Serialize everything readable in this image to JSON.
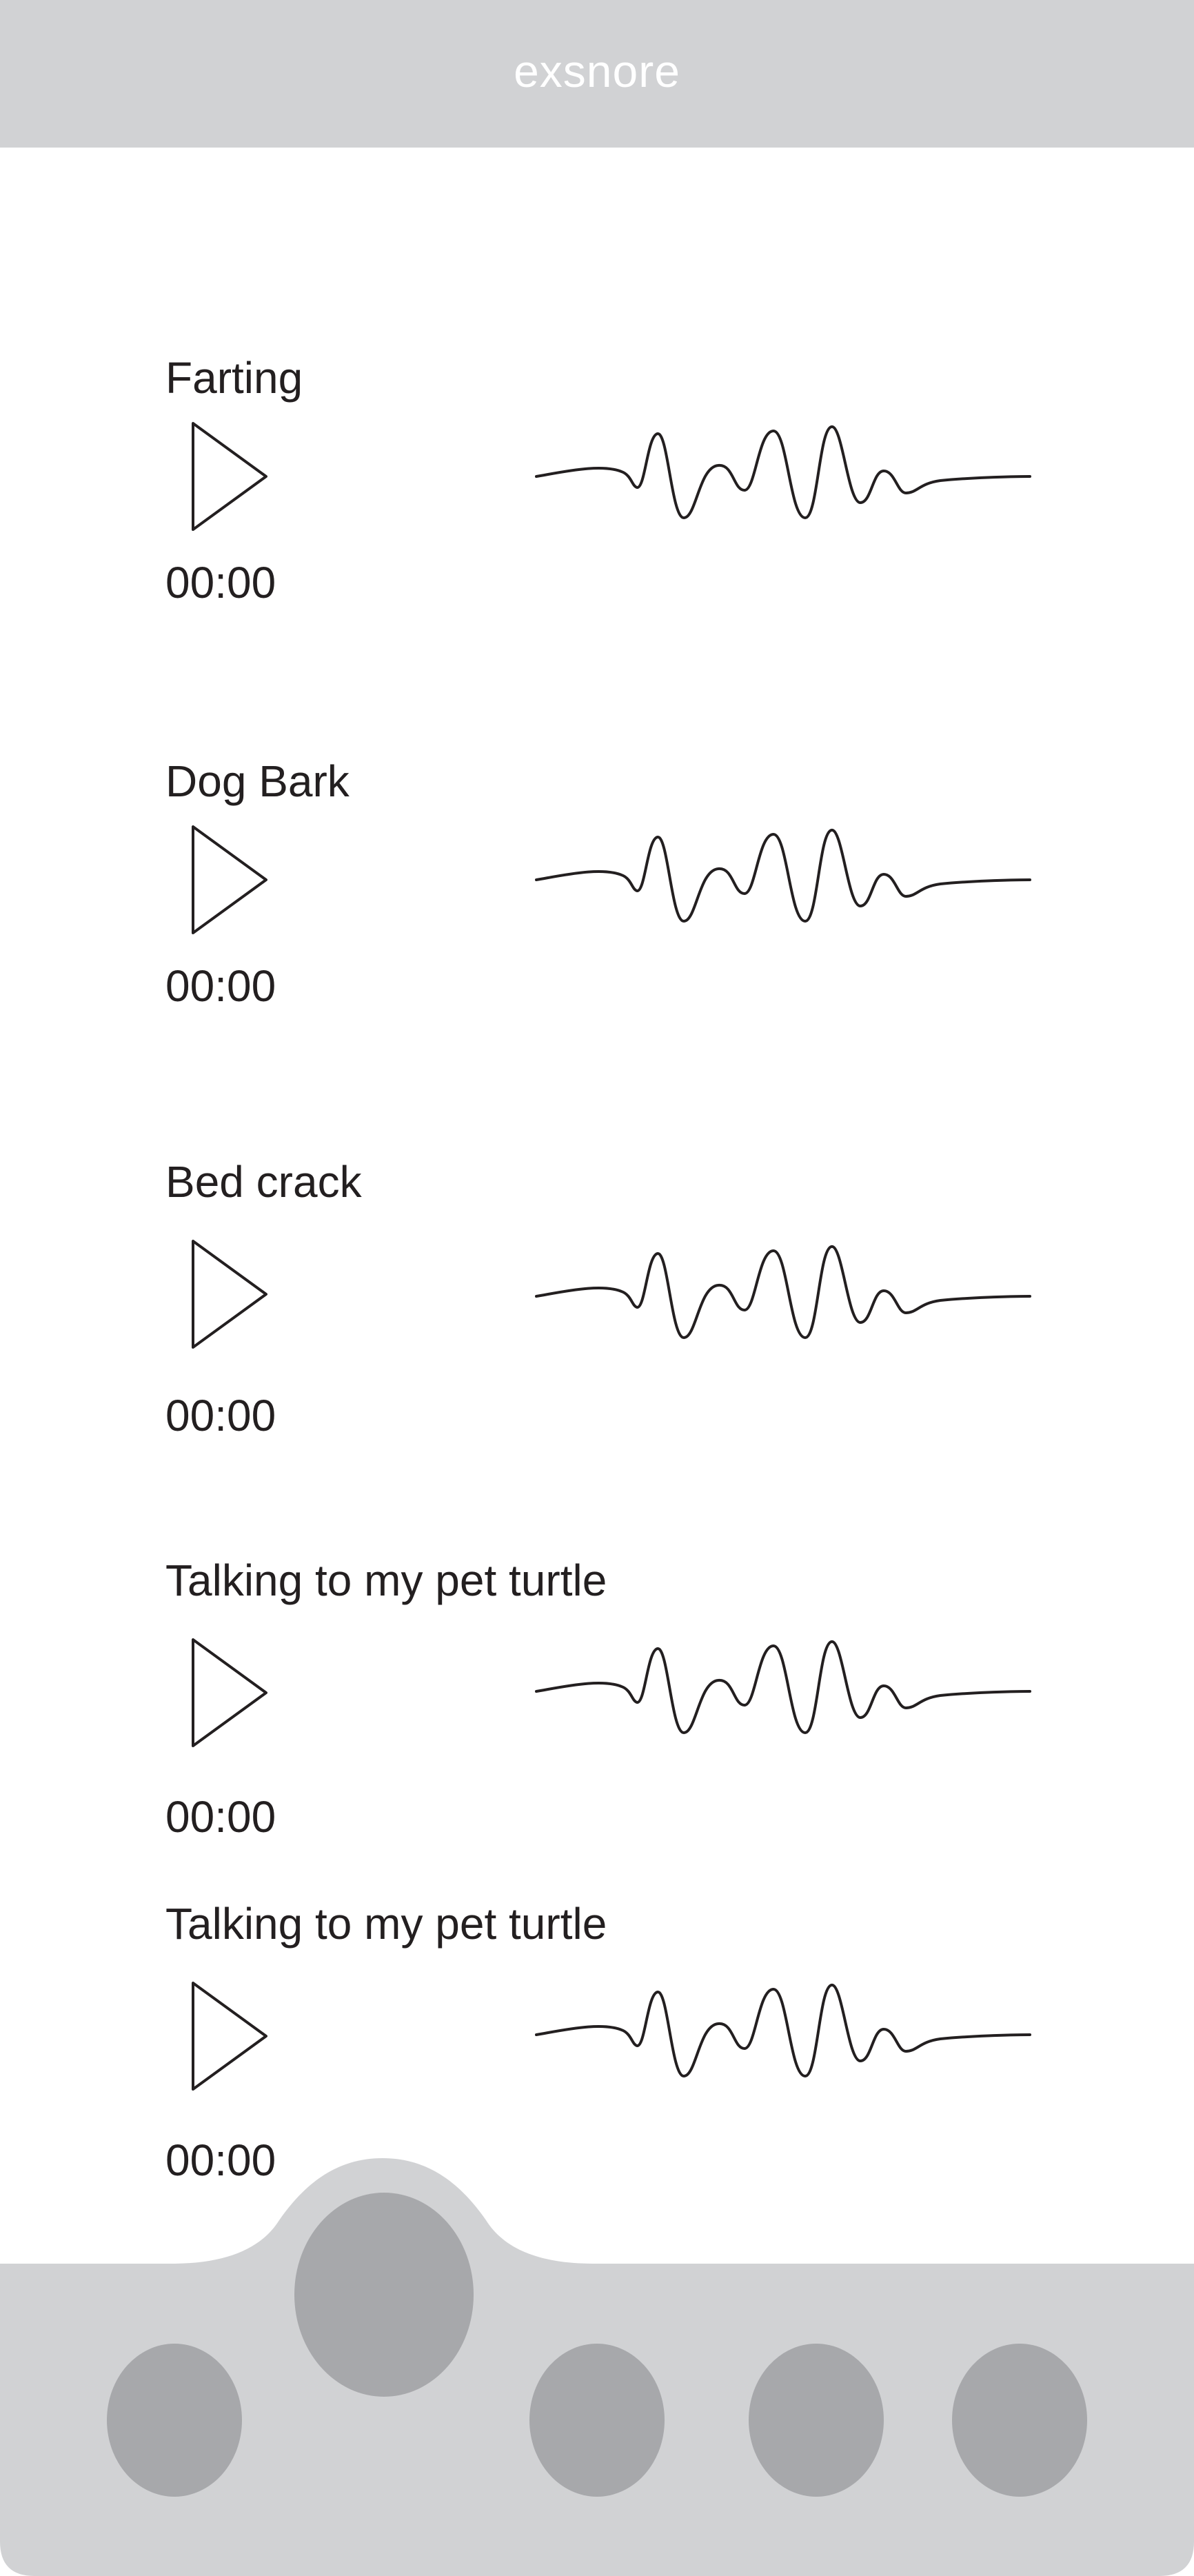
{
  "header": {
    "title": "exsnore"
  },
  "sounds": [
    {
      "name": "Farting",
      "time": "00:00"
    },
    {
      "name": "Dog Bark",
      "time": "00:00"
    },
    {
      "name": "Bed crack",
      "time": "00:00"
    },
    {
      "name": "Talking to my pet turtle",
      "time": "00:00"
    },
    {
      "name": "Talking to my pet turtle",
      "time": "00:00"
    }
  ],
  "icons": {
    "play": "play-icon",
    "waveform": "waveform-icon"
  },
  "colors": {
    "header_bg": "#d1d2d4",
    "nav_bg": "#d1d2d4",
    "nav_button": "#a7a8ab",
    "text": "#231f20"
  }
}
